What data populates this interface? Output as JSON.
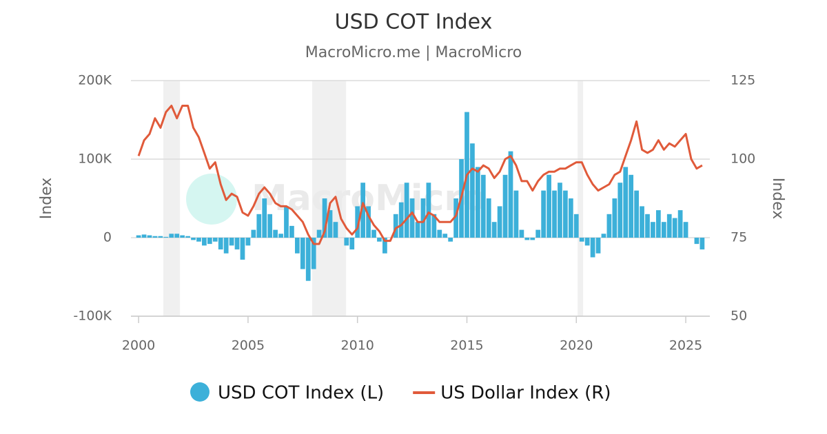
{
  "chart_data": {
    "type": "combo",
    "title": "USD COT Index",
    "subtitle": "MacroMicro.me | MacroMicro",
    "watermark": "MacroMicro",
    "y_label": "Index",
    "y2_label": "Index",
    "xlim": [
      1999.65,
      2026.1
    ],
    "xticks": [
      2000,
      2005,
      2010,
      2015,
      2020,
      2025
    ],
    "ylim": [
      -100000,
      200000
    ],
    "yticks": [
      {
        "value": -100000,
        "label": "-100K"
      },
      0,
      {
        "value": 100000,
        "label": "100K"
      },
      {
        "value": 200000,
        "label": "200K"
      }
    ],
    "y2lim": [
      50,
      125
    ],
    "y2ticks": [
      50,
      75,
      100,
      125
    ],
    "grid": true,
    "shaded_periods": [
      [
        2001.13,
        2001.89
      ],
      [
        2007.93,
        2009.48
      ],
      [
        2020.06,
        2020.31
      ]
    ],
    "x": [
      2000.0,
      2000.25,
      2000.5,
      2000.75,
      2001.0,
      2001.25,
      2001.5,
      2001.75,
      2002.0,
      2002.25,
      2002.5,
      2002.75,
      2003.0,
      2003.25,
      2003.5,
      2003.75,
      2004.0,
      2004.25,
      2004.5,
      2004.75,
      2005.0,
      2005.25,
      2005.5,
      2005.75,
      2006.0,
      2006.25,
      2006.5,
      2006.75,
      2007.0,
      2007.25,
      2007.5,
      2007.75,
      2008.0,
      2008.25,
      2008.5,
      2008.75,
      2009.0,
      2009.25,
      2009.5,
      2009.75,
      2010.0,
      2010.25,
      2010.5,
      2010.75,
      2011.0,
      2011.25,
      2011.5,
      2011.75,
      2012.0,
      2012.25,
      2012.5,
      2012.75,
      2013.0,
      2013.25,
      2013.5,
      2013.75,
      2014.0,
      2014.25,
      2014.5,
      2014.75,
      2015.0,
      2015.25,
      2015.5,
      2015.75,
      2016.0,
      2016.25,
      2016.5,
      2016.75,
      2017.0,
      2017.25,
      2017.5,
      2017.75,
      2018.0,
      2018.25,
      2018.5,
      2018.75,
      2019.0,
      2019.25,
      2019.5,
      2019.75,
      2020.0,
      2020.25,
      2020.5,
      2020.75,
      2021.0,
      2021.25,
      2021.5,
      2021.75,
      2022.0,
      2022.25,
      2022.5,
      2022.75,
      2023.0,
      2023.25,
      2023.5,
      2023.75,
      2024.0,
      2024.25,
      2024.5,
      2024.75,
      2025.0,
      2025.25,
      2025.5,
      2025.75
    ],
    "series": [
      {
        "name": "USD COT Index (L)",
        "type": "bar",
        "color": "#3cb0d9",
        "axis": "y",
        "values": [
          3000,
          4000,
          3000,
          2000,
          2000,
          1000,
          5000,
          5000,
          3000,
          2000,
          -3000,
          -5000,
          -10000,
          -8000,
          -5000,
          -15000,
          -20000,
          -10000,
          -15000,
          -28000,
          -10000,
          10000,
          30000,
          50000,
          30000,
          10000,
          5000,
          40000,
          15000,
          -20000,
          -40000,
          -55000,
          -40000,
          10000,
          50000,
          35000,
          20000,
          0,
          -10000,
          -15000,
          40000,
          70000,
          40000,
          10000,
          -5000,
          -20000,
          0,
          30000,
          45000,
          70000,
          50000,
          20000,
          50000,
          70000,
          30000,
          10000,
          5000,
          -5000,
          50000,
          100000,
          160000,
          120000,
          90000,
          80000,
          50000,
          20000,
          40000,
          80000,
          110000,
          60000,
          10000,
          -3000,
          -3000,
          10000,
          60000,
          80000,
          60000,
          70000,
          60000,
          50000,
          30000,
          -5000,
          -10000,
          -25000,
          -20000,
          5000,
          30000,
          50000,
          70000,
          90000,
          80000,
          60000,
          40000,
          30000,
          20000,
          35000,
          20000,
          30000,
          25000,
          35000,
          20000,
          0,
          -8000,
          -15000
        ]
      },
      {
        "name": "US Dollar Index (R)",
        "type": "line",
        "color": "#e05a3a",
        "axis": "y2",
        "values": [
          101,
          106,
          108,
          113,
          110,
          115,
          117,
          113,
          117,
          117,
          110,
          107,
          102,
          97,
          99,
          92,
          87,
          89,
          88,
          83,
          82,
          85,
          89,
          91,
          89,
          86,
          85,
          85,
          84,
          82,
          80,
          76,
          73,
          73,
          77,
          86,
          88,
          81,
          78,
          76,
          78,
          86,
          82,
          79,
          77,
          74,
          74,
          78,
          79,
          81,
          83,
          80,
          80,
          83,
          82,
          80,
          80,
          80,
          82,
          88,
          95,
          97,
          96,
          98,
          97,
          94,
          96,
          100,
          101,
          98,
          93,
          93,
          90,
          93,
          95,
          96,
          96,
          97,
          97,
          98,
          99,
          99,
          95,
          92,
          90,
          91,
          92,
          95,
          96,
          101,
          106,
          112,
          103,
          102,
          103,
          106,
          103,
          105,
          104,
          106,
          108,
          100,
          97,
          98
        ]
      }
    ]
  }
}
